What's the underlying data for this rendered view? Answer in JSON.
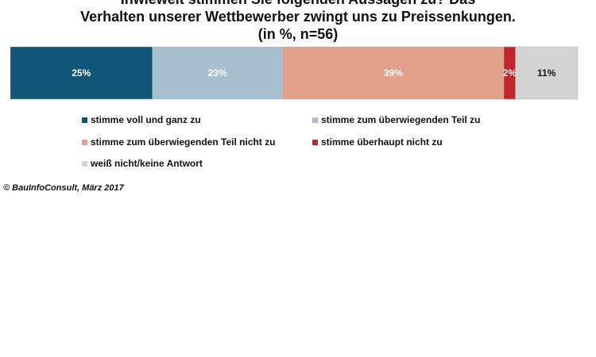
{
  "title_lines": [
    "Inwieweit stimmen Sie folgenden Aussagen zu? Das",
    "Verhalten unserer Wettbewerber zwingt uns zu Preissenkungen.",
    "(in %, n=56)"
  ],
  "chart_data": {
    "type": "bar",
    "orientation": "horizontal-stacked-100",
    "categories": [
      ""
    ],
    "series": [
      {
        "name": "stimme voll und ganz zu",
        "values": [
          25
        ],
        "label": "25%",
        "color": "#0f5575",
        "label_color": "#ffffff"
      },
      {
        "name": "stimme zum überwiegenden Teil zu",
        "values": [
          23
        ],
        "label": "23%",
        "color": "#a7bfce",
        "label_color": "#ffffff"
      },
      {
        "name": "stimme zum überwiegenden Teil nicht zu",
        "values": [
          39
        ],
        "label": "39%",
        "color": "#e0a08a",
        "label_color": "#ffffff"
      },
      {
        "name": "stimme überhaupt nicht zu",
        "values": [
          2
        ],
        "label": "2%",
        "color": "#c0272d",
        "label_color": "#ffffff"
      },
      {
        "name": "weiß nicht/keine Antwort",
        "values": [
          11
        ],
        "label": "11%",
        "color": "#d4d4d4",
        "label_color": "#111111"
      }
    ],
    "xlim": [
      0,
      100
    ],
    "legend_position": "bottom"
  },
  "source": "© BauInfoConsult, März 2017"
}
